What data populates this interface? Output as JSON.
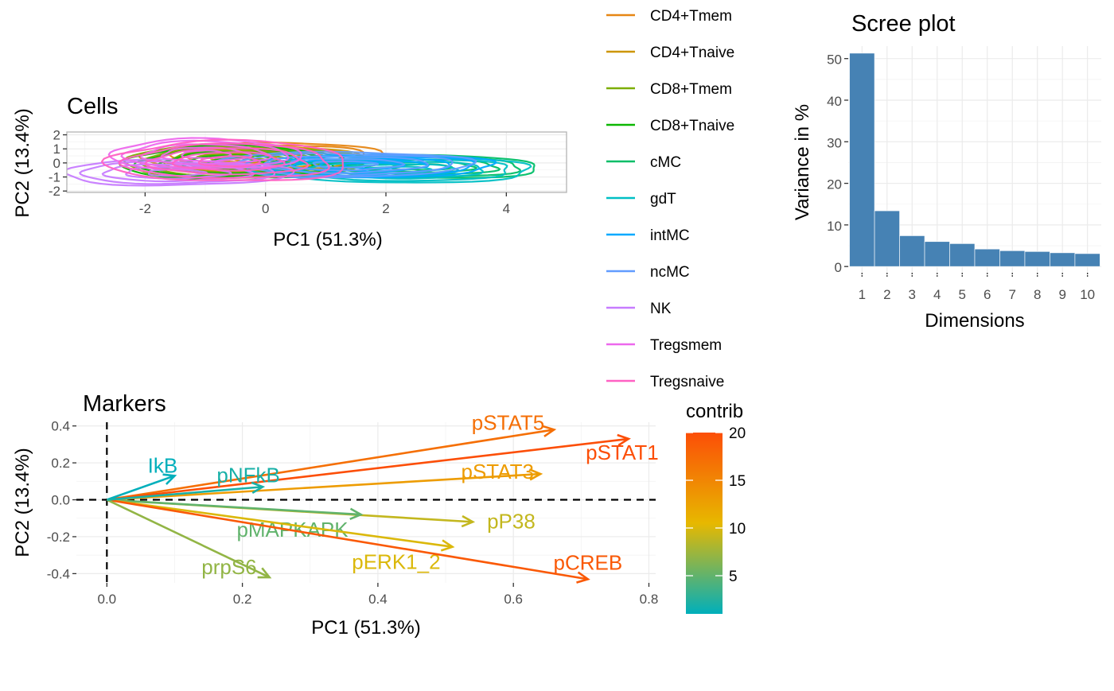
{
  "chart_data": [
    {
      "type": "contour",
      "title": "Cells",
      "xlabel": "PC1 (51.3%)",
      "ylabel": "PC2 (13.4%)",
      "xlim": [
        -3.3,
        5.0
      ],
      "ylim": [
        -2.1,
        2.2
      ],
      "x_ticks": [
        -2,
        0,
        2,
        4
      ],
      "y_ticks": [
        -2,
        -1,
        0,
        1,
        2
      ],
      "grid": true,
      "legend_position": "right",
      "series": [
        {
          "name": "CD4+Tmem",
          "color": "#E68613",
          "center": [
            0.2,
            0.4
          ],
          "spread": [
            1.7,
            1.2
          ]
        },
        {
          "name": "CD4+Tnaive",
          "color": "#CD9600",
          "center": [
            -0.3,
            0.3
          ],
          "spread": [
            1.8,
            1.1
          ]
        },
        {
          "name": "CD8+Tmem",
          "color": "#7CAE00",
          "center": [
            -0.4,
            0.1
          ],
          "spread": [
            2.0,
            1.3
          ]
        },
        {
          "name": "CD8+Tnaive",
          "color": "#0CB702",
          "center": [
            -0.5,
            0.0
          ],
          "spread": [
            1.9,
            1.3
          ]
        },
        {
          "name": "cMC",
          "color": "#00BE67",
          "center": [
            2.6,
            -0.3
          ],
          "spread": [
            2.0,
            0.9
          ]
        },
        {
          "name": "gdT",
          "color": "#00BFC4",
          "center": [
            2.2,
            -0.5
          ],
          "spread": [
            2.3,
            1.0
          ]
        },
        {
          "name": "intMC",
          "color": "#00A9FF",
          "center": [
            1.8,
            -0.2
          ],
          "spread": [
            2.0,
            0.9
          ]
        },
        {
          "name": "ncMC",
          "color": "#619CFF",
          "center": [
            1.3,
            -0.1
          ],
          "spread": [
            2.1,
            1.0
          ]
        },
        {
          "name": "NK",
          "color": "#C77CFF",
          "center": [
            -1.5,
            -0.7
          ],
          "spread": [
            1.9,
            1.0
          ]
        },
        {
          "name": "Tregsmem",
          "color": "#ED68ED",
          "center": [
            -1.0,
            0.6
          ],
          "spread": [
            1.6,
            1.2
          ]
        },
        {
          "name": "Tregsnaive",
          "color": "#FF61C3",
          "center": [
            -0.6,
            0.1
          ],
          "spread": [
            2.0,
            1.6
          ]
        }
      ]
    },
    {
      "type": "scatter",
      "subtype": "biplot-arrows",
      "title": "Markers",
      "xlabel": "PC1 (51.3%)",
      "ylabel": "PC2 (13.4%)",
      "xlim": [
        -0.045,
        0.81
      ],
      "ylim": [
        -0.45,
        0.42
      ],
      "x_ticks": [
        0.0,
        0.2,
        0.4,
        0.6,
        0.8
      ],
      "x_tick_labels": [
        "0.0",
        "0.2",
        "0.4",
        "0.6",
        "0.8"
      ],
      "y_ticks": [
        -0.4,
        -0.2,
        0.0,
        0.2,
        0.4
      ],
      "y_tick_labels": [
        "-0.4",
        "-0.2",
        "0.0",
        "0.2",
        "0.4"
      ],
      "grid": true,
      "legend_position": "right",
      "color_legend": {
        "title": "contrib",
        "min": 1,
        "max": 20,
        "ticks": [
          5,
          10,
          15,
          20
        ],
        "palette": [
          "#00AFBB",
          "#E7B800",
          "#FC4E07"
        ]
      },
      "arrows": [
        {
          "name": "pSTAT5",
          "x": 0.66,
          "y": 0.38,
          "contrib": 17
        },
        {
          "name": "pSTAT1",
          "x": 0.77,
          "y": 0.33,
          "contrib": 20
        },
        {
          "name": "pSTAT3",
          "x": 0.64,
          "y": 0.14,
          "contrib": 13
        },
        {
          "name": "pP38",
          "x": 0.54,
          "y": -0.12,
          "contrib": 9
        },
        {
          "name": "pMAPKAPK",
          "x": 0.375,
          "y": -0.08,
          "contrib": 5
        },
        {
          "name": "pERK1_2",
          "x": 0.51,
          "y": -0.255,
          "contrib": 10
        },
        {
          "name": "pCREB",
          "x": 0.71,
          "y": -0.43,
          "contrib": 19
        },
        {
          "name": "prpS6",
          "x": 0.24,
          "y": -0.42,
          "contrib": 7
        },
        {
          "name": "IkB",
          "x": 0.1,
          "y": 0.13,
          "contrib": 1
        },
        {
          "name": "pNFkB",
          "x": 0.23,
          "y": 0.07,
          "contrib": 2
        }
      ]
    },
    {
      "type": "bar",
      "title": "Scree plot",
      "xlabel": "Dimensions",
      "ylabel": "Variance in %",
      "categories": [
        "1",
        "2",
        "3",
        "4",
        "5",
        "6",
        "7",
        "8",
        "9",
        "10"
      ],
      "values": [
        51.3,
        13.4,
        7.4,
        6.0,
        5.5,
        4.2,
        3.8,
        3.6,
        3.3,
        3.1
      ],
      "ylim": [
        -1.5,
        53
      ],
      "y_ticks": [
        0,
        10,
        20,
        30,
        40,
        50
      ],
      "color": "#4682B4",
      "grid": true
    }
  ]
}
